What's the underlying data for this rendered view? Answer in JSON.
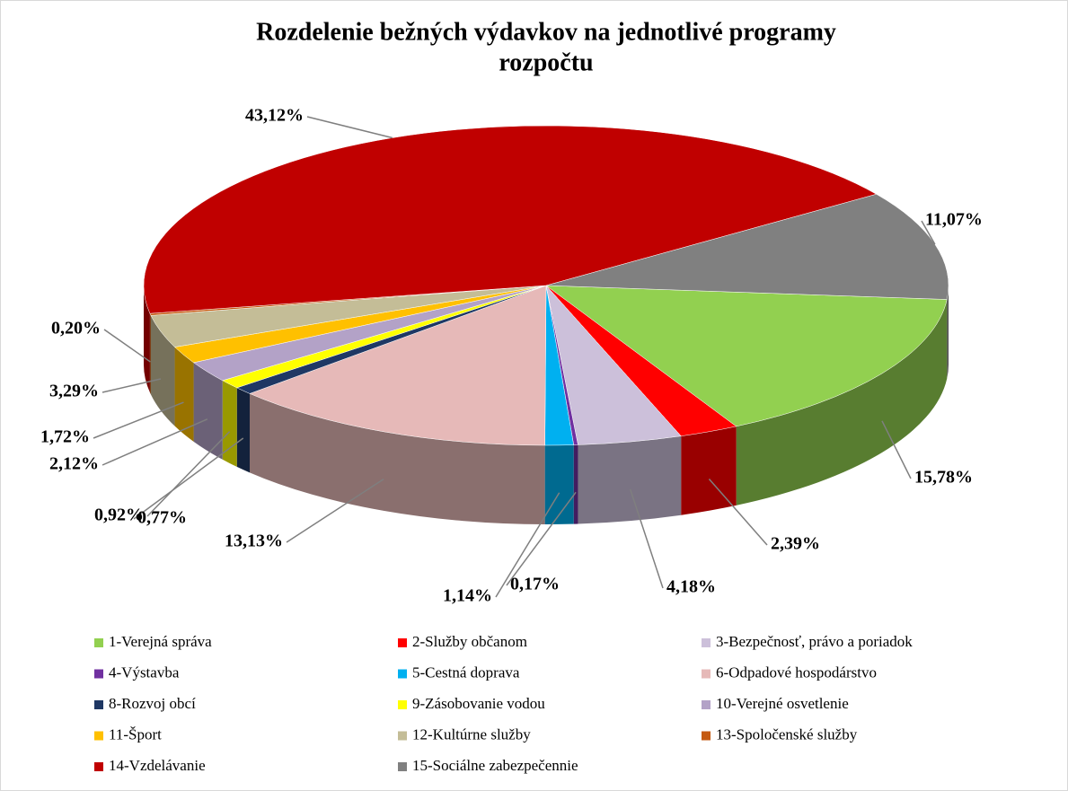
{
  "chart_data": {
    "type": "pie3d",
    "title": [
      "Rozdelenie bežných výdavkov na jednotlivé programy",
      "rozpočtu"
    ],
    "categories": [
      "1-Verejná správa",
      "2-Služby občanom",
      "3-Bezpečnosť, právo a poriadok",
      "4-Výstavba",
      "5-Cestná doprava",
      "6-Odpadové hospodárstvo",
      "8-Rozvoj obcí",
      "9-Zásobovanie vodou",
      "10-Verejné osvetlenie",
      "11-Šport",
      "12-Kultúrne služby",
      "13-Spoločenské služby",
      "14-Vzdelávanie",
      "15-Sociálne zabezpečennie"
    ],
    "values": [
      15.78,
      2.39,
      4.18,
      0.17,
      1.14,
      13.13,
      0.77,
      0.92,
      2.12,
      1.72,
      3.29,
      0.2,
      43.12,
      11.07
    ],
    "value_labels": [
      "15,78%",
      "2,39%",
      "4,18%",
      "0,17%",
      "1,14%",
      "13,13%",
      "0,77%",
      "0,92%",
      "2,12%",
      "1,72%",
      "3,29%",
      "0,20%",
      "43,12%",
      "11,07%"
    ],
    "colors": [
      "#92d050",
      "#ff0000",
      "#ccc0da",
      "#7030a0",
      "#00b0f0",
      "#e6b9b8",
      "#1f3864",
      "#ffff00",
      "#b3a2c7",
      "#ffc000",
      "#c4bd97",
      "#c55a11",
      "#c00000",
      "#808080"
    ],
    "legend": "bottom"
  }
}
